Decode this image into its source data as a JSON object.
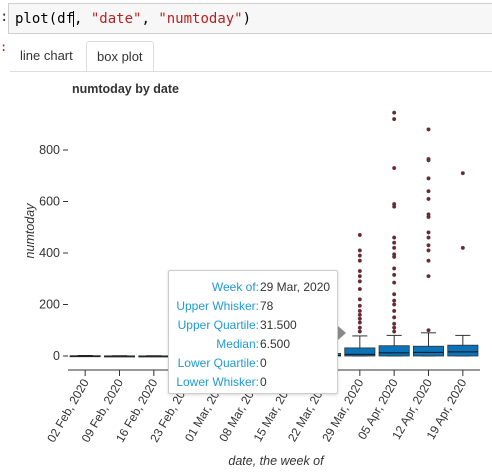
{
  "prompt": {
    "marker": ":",
    "error_marker": ":"
  },
  "code": {
    "fn": "plot(df",
    "after_cursor": ", ",
    "arg1": "\"date\"",
    "sep": ", ",
    "arg2": "\"numtoday\"",
    "close": ")"
  },
  "tabs": [
    {
      "label": "line chart",
      "active": false
    },
    {
      "label": "box plot",
      "active": true
    }
  ],
  "colors": {
    "box_fill": "#0b73b8",
    "outlier": "#7a1f2b",
    "tooltip_label": "#1f9ad6"
  },
  "tooltip": {
    "rows": [
      {
        "label": "Week of:",
        "value": "29 Mar, 2020"
      },
      {
        "label": "Upper Whisker:",
        "value": "78"
      },
      {
        "label": "Upper Quartile:",
        "value": "31.500"
      },
      {
        "label": "Median:",
        "value": "6.500"
      },
      {
        "label": "Lower Quartile:",
        "value": "0"
      },
      {
        "label": "Lower Whisker:",
        "value": "0"
      }
    ]
  },
  "chart_data": {
    "type": "box",
    "title": "numtoday by date",
    "xlabel": "date, the week of",
    "ylabel": "numtoday",
    "ylim": [
      -20,
      990
    ],
    "yticks": [
      0,
      200,
      400,
      600,
      800
    ],
    "grid": false,
    "categories": [
      "02 Feb, 2020",
      "09 Feb, 2020",
      "16 Feb, 2020",
      "23 Feb, 2020",
      "01 Mar, 2020",
      "08 Mar, 2020",
      "15 Mar, 2020",
      "22 Mar, 2020",
      "29 Mar, 2020",
      "05 Apr, 2020",
      "12 Apr, 2020",
      "19 Apr, 2020"
    ],
    "boxes": [
      {
        "whisker_low": 0,
        "q1": 0,
        "median": 0,
        "q3": 1,
        "whisker_high": 2,
        "outliers": []
      },
      {
        "whisker_low": 0,
        "q1": 0,
        "median": 0,
        "q3": 0,
        "whisker_high": 1,
        "outliers": []
      },
      {
        "whisker_low": 0,
        "q1": 0,
        "median": 0,
        "q3": 0,
        "whisker_high": 1,
        "outliers": []
      },
      {
        "whisker_low": 0,
        "q1": 0,
        "median": 0,
        "q3": 1,
        "whisker_high": 2,
        "outliers": []
      },
      {
        "whisker_low": 0,
        "q1": 0,
        "median": 0,
        "q3": 1,
        "whisker_high": 2,
        "outliers": []
      },
      {
        "whisker_low": 0,
        "q1": 0,
        "median": 1,
        "q3": 3,
        "whisker_high": 6,
        "outliers": []
      },
      {
        "whisker_low": 0,
        "q1": 0,
        "median": 1,
        "q3": 5,
        "whisker_high": 10,
        "outliers": []
      },
      {
        "whisker_low": 0,
        "q1": 0,
        "median": 2,
        "q3": 10,
        "whisker_high": 20,
        "outliers": [
          150
        ]
      },
      {
        "whisker_low": 0,
        "q1": 0,
        "median": 6.5,
        "q3": 31.5,
        "whisker_high": 78,
        "outliers": [
          95,
          110,
          130,
          145,
          160,
          175,
          195,
          220,
          260,
          290,
          310,
          330,
          370,
          390,
          410,
          470
        ]
      },
      {
        "whisker_low": 0,
        "q1": 0,
        "median": 12,
        "q3": 40,
        "whisker_high": 80,
        "outliers": [
          95,
          110,
          125,
          150,
          175,
          200,
          215,
          240,
          285,
          315,
          340,
          385,
          395,
          420,
          440,
          460,
          580,
          590,
          730,
          920,
          945
        ]
      },
      {
        "whisker_low": 0,
        "q1": 0,
        "median": 14,
        "q3": 38,
        "whisker_high": 90,
        "outliers": [
          100,
          310,
          370,
          410,
          430,
          460,
          480,
          540,
          550,
          610,
          640,
          690,
          760,
          765,
          880
        ]
      },
      {
        "whisker_low": 0,
        "q1": 0,
        "median": 16,
        "q3": 42,
        "whisker_high": 80,
        "outliers": [
          420,
          710
        ]
      }
    ]
  }
}
